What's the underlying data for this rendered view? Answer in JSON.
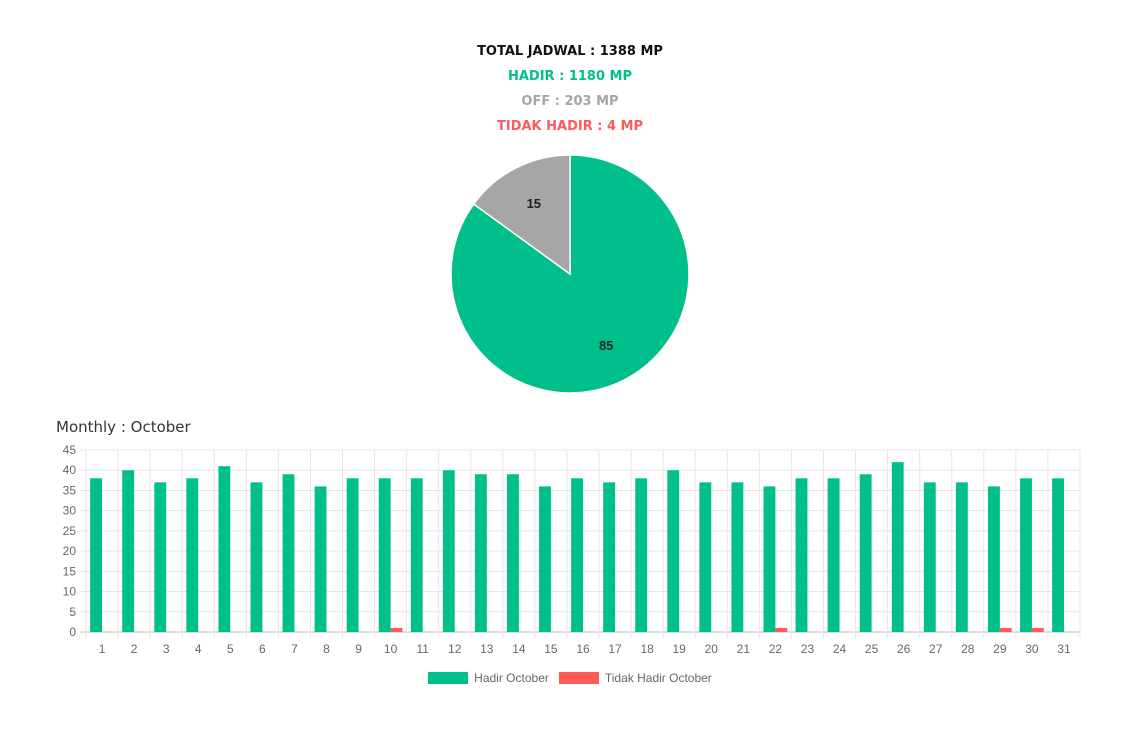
{
  "summary": {
    "total": "TOTAL JADWAL : 1388 MP",
    "hadir": "HADIR : 1180 MP",
    "off": "OFF : 203 MP",
    "tidak_hadir": "TIDAK HADIR : 4 MP"
  },
  "colors": {
    "hadir": "#00BF8B",
    "off": "#A6A6A6",
    "tidak_hadir": "#FF5A5A",
    "grid": "#E6E6E6",
    "tick": "#666666"
  },
  "monthly_title": "Monthly : October",
  "chart_data": [
    {
      "type": "pie",
      "slices": [
        {
          "label": "HADIR",
          "value": 85,
          "color": "#00BF8B"
        },
        {
          "label": "OFF",
          "value": 15,
          "color": "#A6A6A6"
        },
        {
          "label": "TIDAK HADIR",
          "value": 0,
          "color": "#FF5A5A"
        }
      ],
      "data_labels": [
        "85",
        "15"
      ]
    },
    {
      "type": "bar",
      "title": "Monthly : October",
      "categories": [
        "1",
        "2",
        "3",
        "4",
        "5",
        "6",
        "7",
        "8",
        "9",
        "10",
        "11",
        "12",
        "13",
        "14",
        "15",
        "16",
        "17",
        "18",
        "19",
        "20",
        "21",
        "22",
        "23",
        "24",
        "25",
        "26",
        "27",
        "28",
        "29",
        "30",
        "31"
      ],
      "series": [
        {
          "name": "Hadir October",
          "color": "#00BF8B",
          "values": [
            38,
            40,
            37,
            38,
            41,
            37,
            39,
            36,
            38,
            38,
            38,
            40,
            39,
            39,
            36,
            38,
            37,
            38,
            40,
            37,
            37,
            36,
            38,
            38,
            39,
            42,
            37,
            37,
            36,
            38,
            38
          ]
        },
        {
          "name": "Tidak Hadir October",
          "color": "#FF5A5A",
          "values": [
            0,
            0,
            0,
            0,
            0,
            0,
            0,
            0,
            0,
            1,
            0,
            0,
            0,
            0,
            0,
            0,
            0,
            0,
            0,
            0,
            0,
            1,
            0,
            0,
            0,
            0,
            0,
            0,
            1,
            1,
            0
          ]
        }
      ],
      "ylim": [
        0,
        45
      ],
      "yticks": [
        0,
        5,
        10,
        15,
        20,
        25,
        30,
        35,
        40,
        45
      ],
      "grid": true,
      "legend_position": "bottom"
    }
  ]
}
